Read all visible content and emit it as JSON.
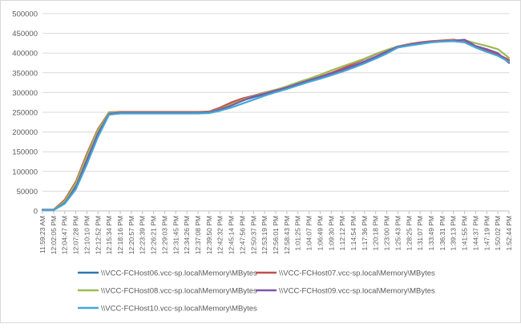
{
  "chart_data": {
    "type": "line",
    "title": "",
    "xlabel": "",
    "ylabel": "",
    "ylim": [
      0,
      500000
    ],
    "y_ticks": [
      "0",
      "50000",
      "100000",
      "150000",
      "200000",
      "250000",
      "300000",
      "350000",
      "400000",
      "450000",
      "500000"
    ],
    "x_tick_labels": [
      "11:59:23 AM",
      "12:02:05 PM",
      "12:04:47 PM",
      "12:07:28 PM",
      "12:10:10 PM",
      "12:12:52 PM",
      "12:15:34 PM",
      "12:18:16 PM",
      "12:20:57 PM",
      "12:23:39 PM",
      "12:26:21 PM",
      "12:29:03 PM",
      "12:31:45 PM",
      "12:34:26 PM",
      "12:37:08 PM",
      "12:39:50 PM",
      "12:42:32 PM",
      "12:45:14 PM",
      "12:47:56 PM",
      "12:50:37 PM",
      "12:53:19 PM",
      "12:56:01 PM",
      "12:58:43 PM",
      "1:01:25 PM",
      "1:04:07 PM",
      "1:06:49 PM",
      "1:09:30 PM",
      "1:12:12 PM",
      "1:14:54 PM",
      "1:17:36 PM",
      "1:20:18 PM",
      "1:23:00 PM",
      "1:25:43 PM",
      "1:28:25 PM",
      "1:31:07 PM",
      "1:33:49 PM",
      "1:36:31 PM",
      "1:39:13 PM",
      "1:41:55 PM",
      "1:44:37 PM",
      "1:47:19 PM",
      "1:50:02 PM",
      "1:52:44 PM"
    ],
    "grid": true,
    "legend_position": "bottom",
    "series": [
      {
        "name": "\\\\VCC-FCHost06.vcc-sp.local\\Memory\\MBytes",
        "color": "#2e75b6",
        "values": [
          3000,
          3000,
          22000,
          64000,
          130000,
          200000,
          248000,
          250000,
          250000,
          250000,
          250000,
          250000,
          250000,
          250000,
          250000,
          250000,
          258000,
          268000,
          280000,
          288000,
          296000,
          305000,
          313000,
          321000,
          329000,
          337000,
          346000,
          356000,
          367000,
          378000,
          390000,
          403000,
          416000,
          421000,
          425000,
          428000,
          430000,
          431000,
          428000,
          415000,
          405000,
          395000,
          380000
        ]
      },
      {
        "name": "\\\\VCC-FCHost07.vcc-sp.local\\Memory\\MBytes",
        "color": "#c0504d",
        "values": [
          3000,
          3000,
          28000,
          74000,
          145000,
          208000,
          250000,
          251000,
          251000,
          251000,
          251000,
          251000,
          251000,
          251000,
          251000,
          252000,
          262000,
          275000,
          285000,
          292000,
          300000,
          307000,
          314000,
          322000,
          331000,
          340000,
          350000,
          361000,
          373000,
          385000,
          397000,
          408000,
          417000,
          423000,
          427000,
          430000,
          432000,
          434000,
          430000,
          417000,
          407000,
          397000,
          383000
        ]
      },
      {
        "name": "\\\\VCC-FCHost08.vcc-sp.local\\Memory\\MBytes",
        "color": "#9bbb59",
        "values": [
          2000,
          2000,
          25000,
          70000,
          140000,
          205000,
          249000,
          250000,
          250000,
          250000,
          250000,
          250000,
          250000,
          250000,
          250000,
          251000,
          258000,
          270000,
          281000,
          291000,
          299000,
          307000,
          316000,
          326000,
          335000,
          345000,
          356000,
          366000,
          376000,
          386000,
          398000,
          408000,
          417000,
          422000,
          425000,
          428000,
          430000,
          432000,
          433000,
          425000,
          418000,
          410000,
          388000
        ]
      },
      {
        "name": "\\\\VCC-FCHost09.vcc-sp.local\\Memory\\MBytes",
        "color": "#7e57a6",
        "values": [
          2000,
          2000,
          20000,
          60000,
          128000,
          196000,
          246000,
          249000,
          249000,
          249000,
          249000,
          249000,
          249000,
          249000,
          249000,
          250000,
          257000,
          267000,
          279000,
          290000,
          297000,
          305000,
          313000,
          322000,
          331000,
          339000,
          348000,
          357000,
          368000,
          379000,
          391000,
          404000,
          416000,
          421000,
          425000,
          428000,
          430000,
          431000,
          434000,
          418000,
          410000,
          400000,
          375000
        ]
      },
      {
        "name": "\\\\VCC-FCHost10.vcc-sp.local\\Memory\\MBytes",
        "color": "#41a7d9",
        "values": [
          2000,
          2000,
          18000,
          55000,
          118000,
          188000,
          244000,
          247000,
          247000,
          247000,
          247000,
          247000,
          247000,
          247000,
          247000,
          248000,
          254000,
          262000,
          272000,
          282000,
          292000,
          301000,
          309000,
          318000,
          327000,
          335000,
          344000,
          353000,
          363000,
          374000,
          386000,
          399000,
          414000,
          419000,
          423000,
          427000,
          429000,
          430000,
          427000,
          414000,
          403000,
          393000,
          378000
        ]
      }
    ]
  }
}
